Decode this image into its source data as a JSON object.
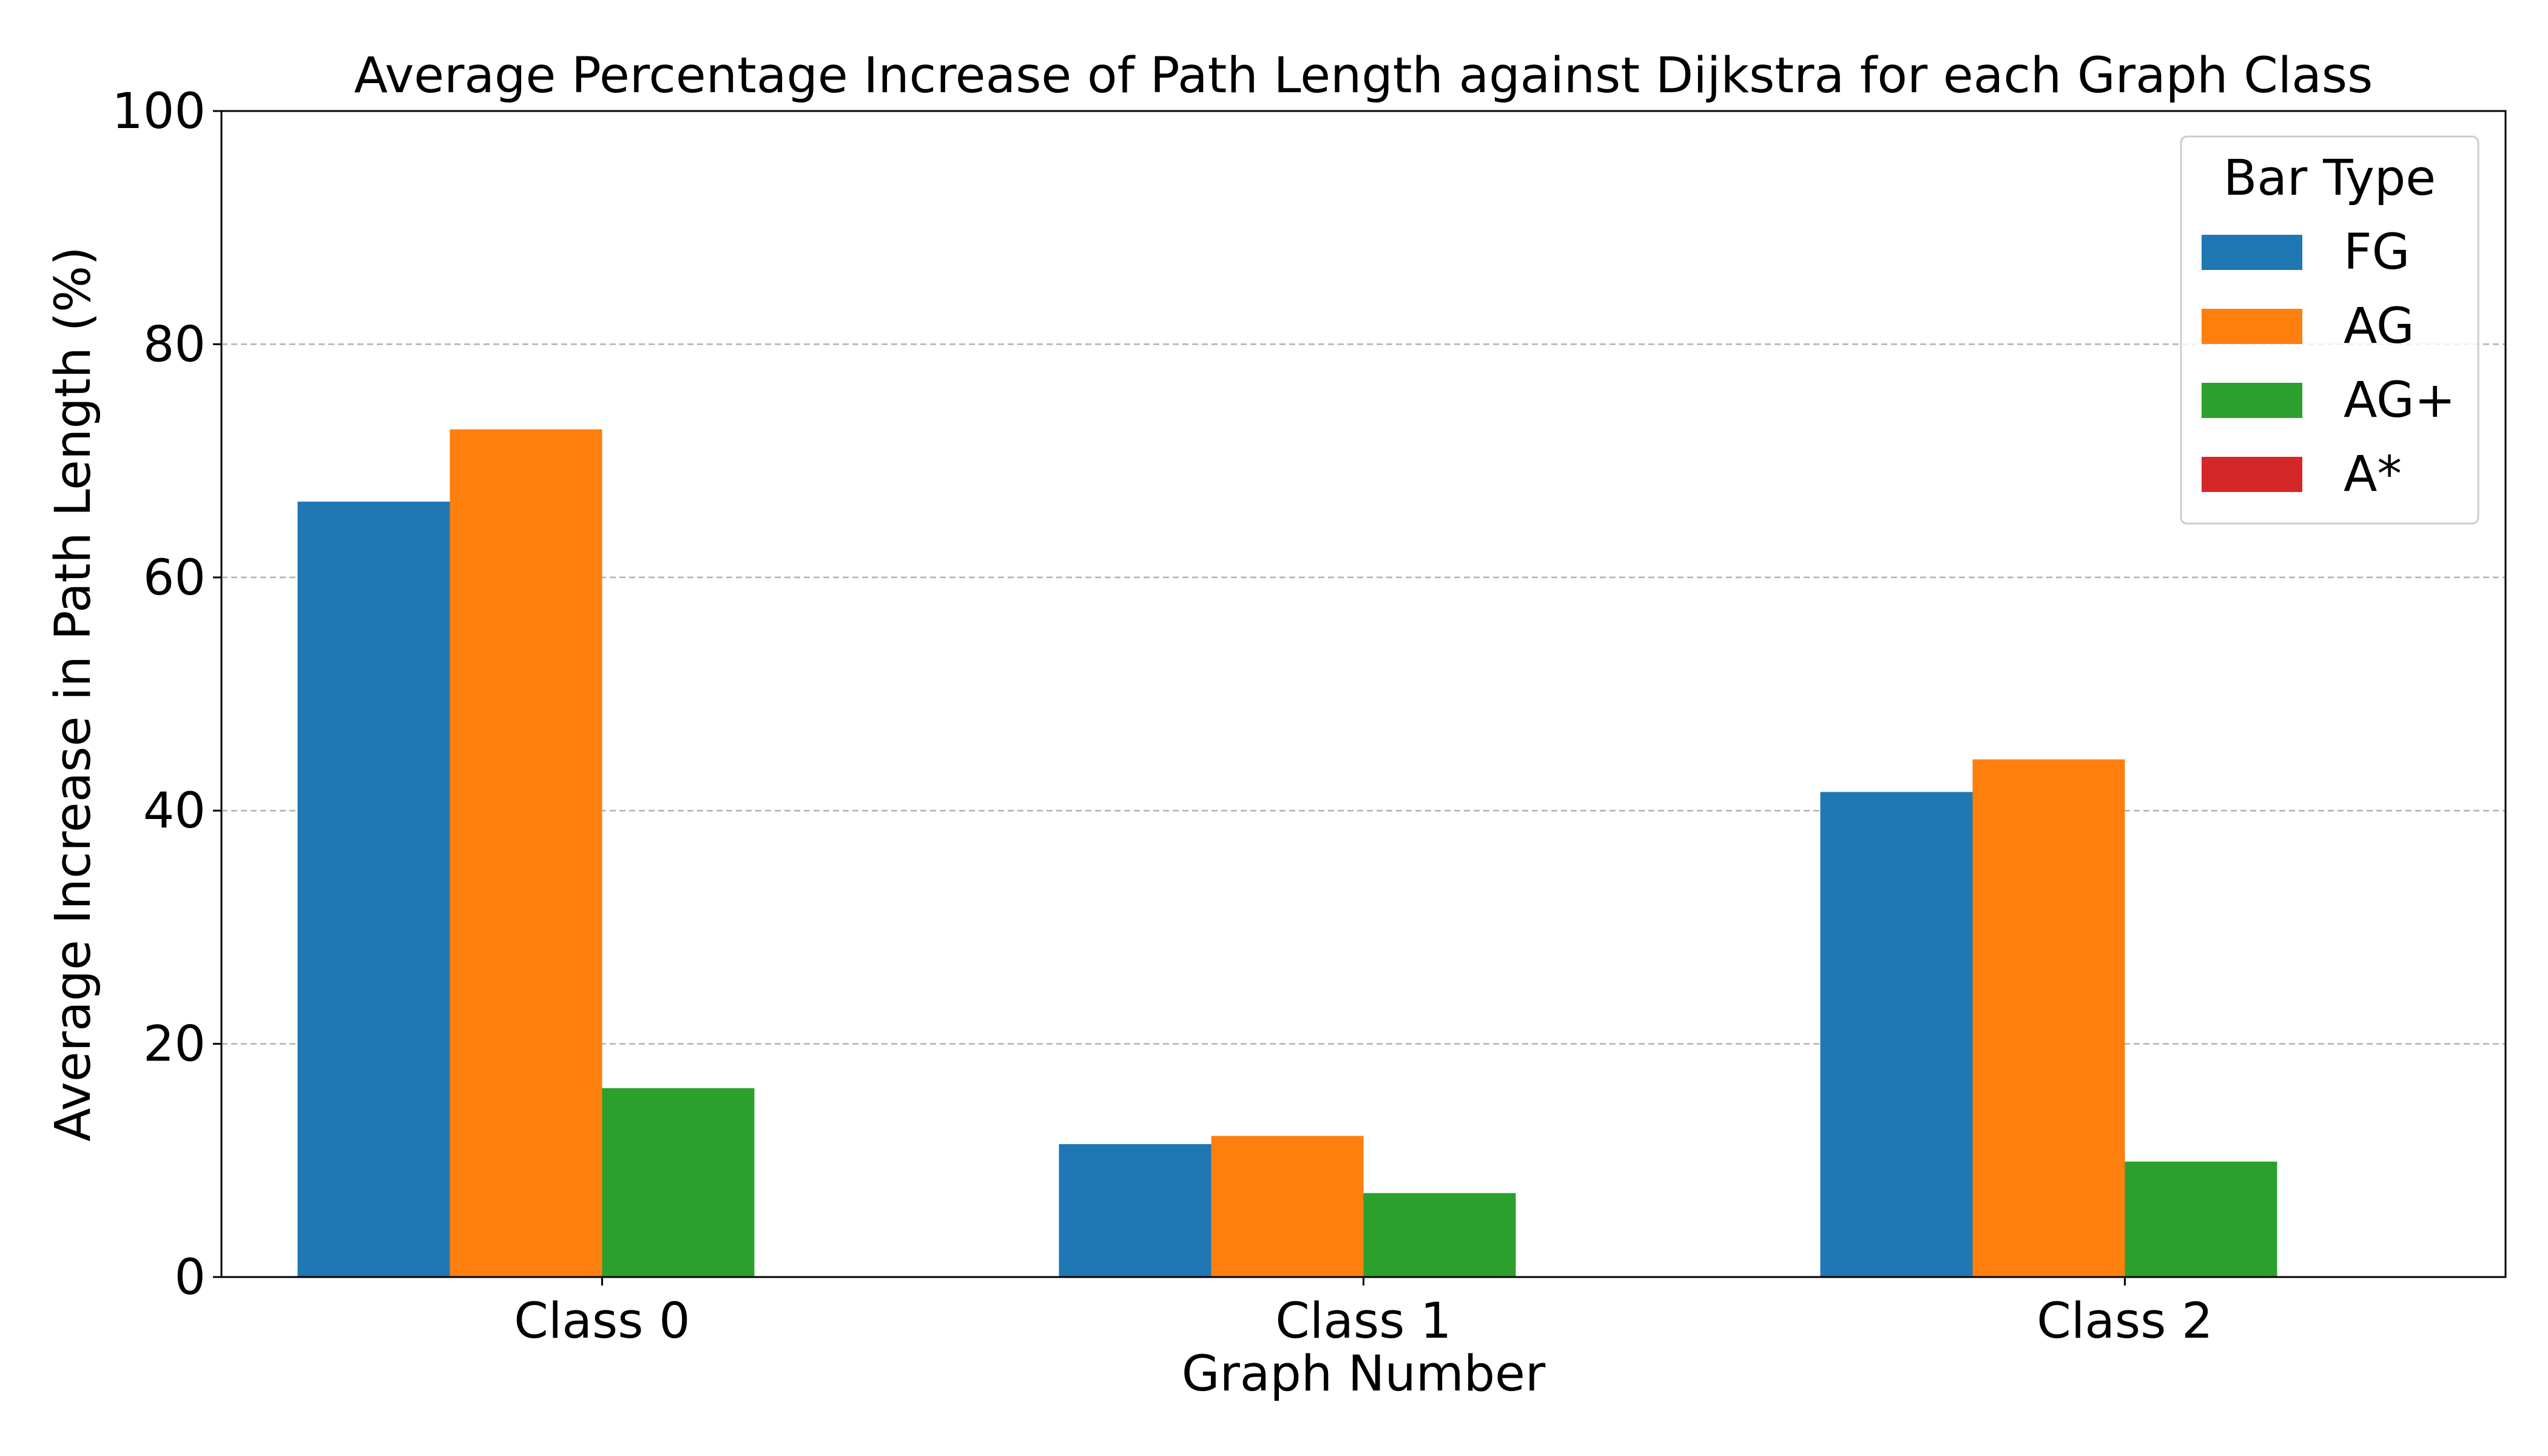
{
  "chart_data": {
    "type": "bar",
    "title": "Average Percentage Increase of Path Length against Dijkstra for each Graph Class",
    "xlabel": "Graph Number",
    "ylabel": "Average Increase in Path Length (%)",
    "categories": [
      "Class 0",
      "Class 1",
      "Class 2"
    ],
    "ylim": [
      0,
      100
    ],
    "yticks": [
      0,
      20,
      40,
      60,
      80,
      100
    ],
    "grid": "y-dashed",
    "legend": {
      "title": "Bar Type",
      "placement": "top-right"
    },
    "series": [
      {
        "name": "FG",
        "color": "#1f77b4",
        "values": [
          66.5,
          11.4,
          41.6
        ]
      },
      {
        "name": "AG",
        "color": "#ff7f0e",
        "values": [
          72.7,
          12.1,
          44.4
        ]
      },
      {
        "name": "AG+",
        "color": "#2ca02c",
        "values": [
          16.2,
          7.2,
          9.9
        ]
      },
      {
        "name": "A*",
        "color": "#d62728",
        "values": [
          0,
          0,
          0
        ]
      }
    ]
  }
}
